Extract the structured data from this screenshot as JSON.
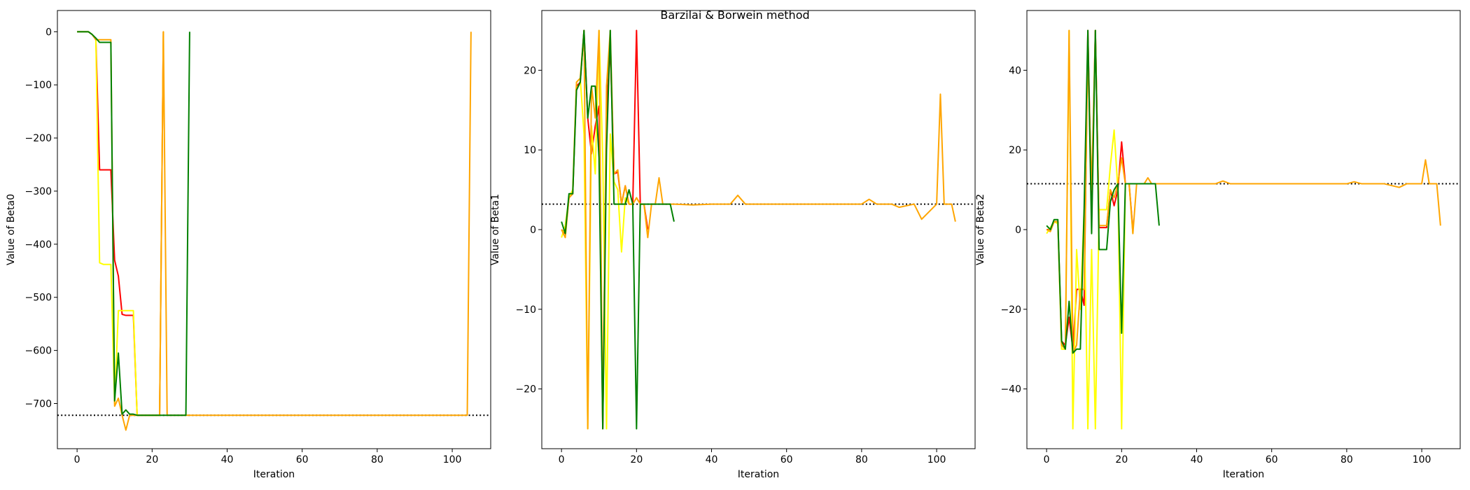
{
  "figure_title": "Barzilai & Borwein method",
  "chart_data": [
    {
      "type": "line",
      "xlabel": "Iteration",
      "ylabel": "Value of Beta0",
      "xlim": [
        -5.25,
        110.25
      ],
      "ylim": [
        -785,
        40
      ],
      "xticks": [
        0,
        20,
        40,
        60,
        80,
        100
      ],
      "yticks": [
        0,
        -100,
        -200,
        -300,
        -400,
        -500,
        -600,
        -700
      ],
      "reference_line": {
        "y": -722,
        "style": "dotted",
        "color": "#000000"
      },
      "grid": false,
      "series": [
        {
          "color": "#ff0000",
          "x": [
            0,
            1,
            2,
            3,
            4,
            5,
            6,
            7,
            8,
            9,
            10,
            11,
            12,
            13,
            14,
            15,
            16,
            17,
            18,
            19,
            20,
            21,
            22,
            23
          ],
          "y": [
            0,
            0,
            0,
            0,
            -5,
            -15,
            -260,
            -260,
            -260,
            -260,
            -430,
            -460,
            -532,
            -534,
            -534,
            -534,
            -722,
            -722,
            -722,
            -722,
            -722,
            -722,
            -722,
            0
          ]
        },
        {
          "color": "#ffff00",
          "x": [
            0,
            1,
            2,
            3,
            4,
            5,
            6,
            7,
            8,
            9,
            10,
            11,
            12,
            13,
            14,
            15,
            16,
            17,
            18,
            19,
            20,
            21,
            22,
            23
          ],
          "y": [
            0,
            0,
            0,
            0,
            -5,
            -15,
            -435,
            -438,
            -438,
            -438,
            -700,
            -525,
            -525,
            -525,
            -525,
            -525,
            -722,
            -722,
            -722,
            -722,
            -722,
            -722,
            -722,
            0
          ]
        },
        {
          "color": "#ffa500",
          "x": [
            0,
            1,
            2,
            3,
            4,
            5,
            6,
            7,
            8,
            9,
            10,
            11,
            12,
            13,
            14,
            15,
            16,
            17,
            18,
            19,
            20,
            21,
            22,
            23,
            24,
            25,
            26,
            27,
            28,
            29,
            30,
            35,
            40,
            45,
            50,
            55,
            60,
            65,
            70,
            75,
            80,
            85,
            90,
            95,
            100,
            101,
            102,
            103,
            104,
            105
          ],
          "y": [
            0,
            0,
            0,
            0,
            -5,
            -15,
            -15,
            -15,
            -15,
            -15,
            -705,
            -690,
            -722,
            -750,
            -722,
            -722,
            -722,
            -722,
            -722,
            -722,
            -722,
            -722,
            -722,
            0,
            -722,
            -722,
            -722,
            -722,
            -722,
            -722,
            -722,
            -722,
            -722,
            -722,
            -722,
            -722,
            -722,
            -722,
            -722,
            -722,
            -722,
            -722,
            -722,
            -722,
            -722,
            -722,
            -722,
            -722,
            -722,
            0
          ]
        },
        {
          "color": "#008000",
          "x": [
            0,
            1,
            2,
            3,
            4,
            5,
            6,
            7,
            8,
            9,
            10,
            11,
            12,
            13,
            14,
            15,
            16,
            17,
            18,
            19,
            20,
            21,
            22,
            23,
            24,
            25,
            26,
            27,
            28,
            29,
            30
          ],
          "y": [
            0,
            0,
            0,
            0,
            -5,
            -12,
            -20,
            -20,
            -20,
            -20,
            -695,
            -605,
            -720,
            -712,
            -720,
            -720,
            -722,
            -722,
            -722,
            -722,
            -722,
            -722,
            -722,
            -722,
            -722,
            -722,
            -722,
            -722,
            -722,
            -722,
            0
          ]
        }
      ]
    },
    {
      "type": "line",
      "xlabel": "Iteration",
      "ylabel": "Value of Beta1",
      "xlim": [
        -5.25,
        110.25
      ],
      "ylim": [
        -27.5,
        27.5
      ],
      "xticks": [
        0,
        20,
        40,
        60,
        80,
        100
      ],
      "yticks": [
        20,
        10,
        0,
        -10,
        -20
      ],
      "reference_line": {
        "y": 3.2,
        "style": "dotted",
        "color": "#000000"
      },
      "grid": false,
      "series": [
        {
          "color": "#ff0000",
          "x": [
            0,
            1,
            2,
            3,
            4,
            5,
            6,
            7,
            8,
            9,
            10,
            11,
            12,
            13,
            14,
            15,
            16,
            17,
            18,
            19,
            20,
            21,
            22,
            23
          ],
          "y": [
            0,
            -0.5,
            4,
            4.5,
            18,
            18.5,
            25,
            14,
            9.5,
            13,
            15.5,
            -25,
            15,
            23,
            7,
            7.2,
            3.2,
            5.5,
            3.2,
            3.2,
            25,
            3.2,
            3.2,
            0
          ]
        },
        {
          "color": "#ffff00",
          "x": [
            0,
            1,
            2,
            3,
            4,
            5,
            6,
            7,
            8,
            9,
            10,
            11,
            12,
            13,
            14,
            15,
            16,
            17,
            18,
            19,
            20,
            21,
            22,
            23
          ],
          "y": [
            -1,
            0.5,
            4,
            5,
            18.5,
            19,
            12,
            -25,
            13,
            7,
            25,
            9,
            -25,
            12,
            6,
            5,
            -2.8,
            4,
            3.2,
            3.2,
            4,
            3.2,
            3.2,
            -1
          ]
        },
        {
          "color": "#ffa500",
          "x": [
            0,
            1,
            2,
            3,
            4,
            5,
            6,
            7,
            8,
            9,
            10,
            11,
            12,
            13,
            14,
            15,
            16,
            17,
            18,
            19,
            20,
            21,
            22,
            23,
            24,
            25,
            26,
            27,
            28,
            29,
            30,
            35,
            40,
            45,
            47,
            49,
            55,
            60,
            65,
            70,
            75,
            80,
            82,
            84,
            88,
            90,
            94,
            96,
            100,
            101,
            102,
            103,
            104,
            105
          ],
          "y": [
            0,
            -1,
            4,
            4.5,
            18.5,
            19,
            25,
            -25,
            18,
            14,
            25,
            -25,
            18,
            25,
            7,
            7.5,
            3.2,
            5.5,
            3.2,
            3.2,
            4,
            3.2,
            3.2,
            -1,
            3.2,
            3.2,
            6.5,
            3.2,
            3.2,
            3.2,
            3.2,
            3.1,
            3.2,
            3.2,
            4.3,
            3.2,
            3.2,
            3.2,
            3.2,
            3.2,
            3.2,
            3.2,
            3.8,
            3.2,
            3.2,
            2.8,
            3.2,
            1.3,
            3.2,
            17,
            3.2,
            3.2,
            3.2,
            1
          ]
        },
        {
          "color": "#008000",
          "x": [
            0,
            1,
            2,
            3,
            4,
            5,
            6,
            7,
            8,
            9,
            10,
            11,
            12,
            13,
            14,
            15,
            16,
            17,
            18,
            19,
            20,
            21,
            22,
            23,
            24,
            25,
            26,
            27,
            28,
            29,
            30
          ],
          "y": [
            1,
            -0.5,
            4.5,
            4.5,
            17.5,
            18.5,
            25,
            14,
            18,
            18,
            9,
            -25,
            10,
            25,
            3.2,
            3.2,
            3.2,
            3.2,
            5,
            3.2,
            -25,
            3.2,
            3.2,
            3.2,
            3.2,
            3.2,
            3.2,
            3.2,
            3.2,
            3.2,
            1
          ]
        }
      ]
    },
    {
      "type": "line",
      "xlabel": "Iteration",
      "ylabel": "Value of Beta2",
      "xlim": [
        -5.25,
        110.25
      ],
      "ylim": [
        -55,
        55
      ],
      "xticks": [
        0,
        20,
        40,
        60,
        80,
        100
      ],
      "yticks": [
        40,
        20,
        0,
        -20,
        -40
      ],
      "reference_line": {
        "y": 11.5,
        "style": "dotted",
        "color": "#000000"
      },
      "grid": false,
      "series": [
        {
          "color": "#ff0000",
          "x": [
            0,
            1,
            2,
            3,
            4,
            5,
            6,
            7,
            8,
            9,
            10,
            11,
            12,
            13,
            14,
            15,
            16,
            17,
            18,
            19,
            20,
            21,
            22,
            23
          ],
          "y": [
            0,
            0,
            2,
            2,
            -28,
            -29,
            -22,
            -30,
            -15,
            -15,
            -19,
            50,
            5,
            50,
            0.5,
            0.5,
            0.5,
            10,
            6,
            10,
            22,
            11.5,
            11.5,
            0
          ]
        },
        {
          "color": "#ffff00",
          "x": [
            0,
            1,
            2,
            3,
            4,
            5,
            6,
            7,
            8,
            9,
            10,
            11,
            12,
            13,
            14,
            15,
            16,
            17,
            18,
            19,
            20,
            21,
            22,
            23
          ],
          "y": [
            -1,
            0.5,
            2,
            1.5,
            -30,
            -30,
            50,
            -50,
            -5,
            -20,
            5,
            -50,
            -5,
            -50,
            5,
            5,
            5,
            16,
            25,
            10,
            -50,
            11.5,
            11.5,
            -1
          ]
        },
        {
          "color": "#ffa500",
          "x": [
            0,
            1,
            2,
            3,
            4,
            5,
            6,
            7,
            8,
            9,
            10,
            11,
            12,
            13,
            14,
            15,
            16,
            17,
            18,
            19,
            20,
            21,
            22,
            23,
            24,
            25,
            26,
            27,
            28,
            29,
            30,
            35,
            40,
            45,
            47,
            49,
            55,
            60,
            65,
            70,
            75,
            80,
            82,
            84,
            88,
            90,
            94,
            96,
            100,
            101,
            102,
            103,
            104,
            105
          ],
          "y": [
            0,
            -0.5,
            2,
            2,
            -29,
            -30,
            50,
            -31,
            -29,
            -15,
            -15,
            45,
            10,
            50,
            1,
            1,
            1,
            10,
            8,
            11.5,
            18,
            11.5,
            11.5,
            -1,
            11.5,
            11.5,
            11.5,
            13,
            11.5,
            11.5,
            11.5,
            11.5,
            11.5,
            11.5,
            12.2,
            11.5,
            11.5,
            11.5,
            11.5,
            11.5,
            11.5,
            11.5,
            12,
            11.5,
            11.5,
            11.5,
            10.6,
            11.5,
            11.5,
            17.5,
            11.5,
            11.5,
            11.5,
            1
          ]
        },
        {
          "color": "#008000",
          "x": [
            0,
            1,
            2,
            3,
            4,
            5,
            6,
            7,
            8,
            9,
            10,
            11,
            12,
            13,
            14,
            15,
            16,
            17,
            18,
            19,
            20,
            21,
            22,
            23,
            24,
            25,
            26,
            27,
            28,
            29,
            30
          ],
          "y": [
            1,
            0,
            2.5,
            2.5,
            -28,
            -30,
            -18,
            -31,
            -30,
            -30,
            5,
            50,
            -1,
            50,
            -5,
            -5,
            -5,
            7,
            10,
            11.5,
            -26,
            11.5,
            11.5,
            11.5,
            11.5,
            11.5,
            11.5,
            11.5,
            11.5,
            11.5,
            1
          ]
        }
      ]
    }
  ]
}
